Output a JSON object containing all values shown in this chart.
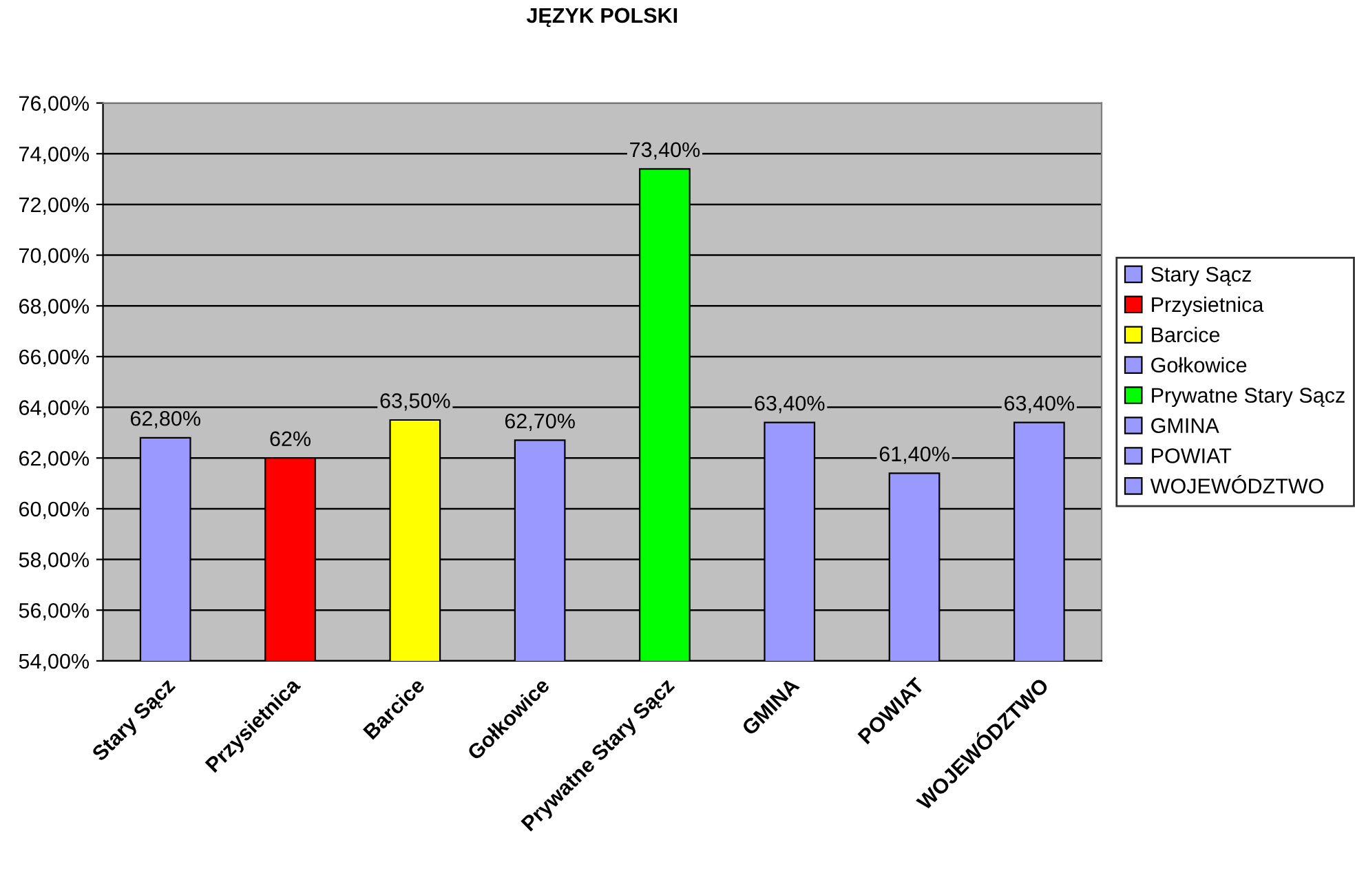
{
  "chart_data": {
    "type": "bar",
    "title": "JĘZYK POLSKI",
    "stacked": true,
    "categories": [
      "Stary Sącz",
      "Przysietnica",
      "Barcice",
      "Gołkowice",
      "Prywatne Stary Sącz",
      "GMINA",
      "POWIAT",
      "WOJEWÓDZTWO"
    ],
    "series": [
      {
        "name": "Stary Sącz",
        "color": "#9999ff",
        "values": [
          62.8,
          null,
          null,
          null,
          null,
          null,
          null,
          null
        ],
        "value_labels": [
          "62,80%",
          null,
          null,
          null,
          null,
          null,
          null,
          null
        ]
      },
      {
        "name": "Przysietnica",
        "color": "#ff0000",
        "values": [
          null,
          62,
          null,
          null,
          null,
          null,
          null,
          null
        ],
        "value_labels": [
          null,
          "62%",
          null,
          null,
          null,
          null,
          null,
          null
        ]
      },
      {
        "name": "Barcice",
        "color": "#ffff00",
        "values": [
          null,
          null,
          63.5,
          null,
          null,
          null,
          null,
          null
        ],
        "value_labels": [
          null,
          null,
          "63,50%",
          null,
          null,
          null,
          null,
          null
        ]
      },
      {
        "name": "Gołkowice",
        "color": "#9999ff",
        "values": [
          null,
          null,
          null,
          62.7,
          null,
          null,
          null,
          null
        ],
        "value_labels": [
          null,
          null,
          null,
          "62,70%",
          null,
          null,
          null,
          null
        ]
      },
      {
        "name": "Prywatne Stary Sącz",
        "color": "#00ff00",
        "values": [
          null,
          null,
          null,
          null,
          73.4,
          null,
          null,
          null
        ],
        "value_labels": [
          null,
          null,
          null,
          null,
          "73,40%",
          null,
          null,
          null
        ]
      },
      {
        "name": "GMINA",
        "color": "#9999ff",
        "values": [
          null,
          null,
          null,
          null,
          null,
          63.4,
          null,
          null
        ],
        "value_labels": [
          null,
          null,
          null,
          null,
          null,
          "63,40%",
          null,
          null
        ]
      },
      {
        "name": "POWIAT",
        "color": "#9999ff",
        "values": [
          null,
          null,
          null,
          null,
          null,
          null,
          61.4,
          null
        ],
        "value_labels": [
          null,
          null,
          null,
          null,
          null,
          null,
          "61,40%",
          null
        ]
      },
      {
        "name": "WOJEWÓDZTWO",
        "color": "#9999ff",
        "values": [
          null,
          null,
          null,
          null,
          null,
          null,
          null,
          63.4
        ],
        "value_labels": [
          null,
          null,
          null,
          null,
          null,
          null,
          null,
          "63,40%"
        ]
      }
    ],
    "ylim": [
      54,
      76
    ],
    "yticks": [
      {
        "value": 54,
        "label": "54,00%"
      },
      {
        "value": 56,
        "label": "56,00%"
      },
      {
        "value": 58,
        "label": "58,00%"
      },
      {
        "value": 60,
        "label": "60,00%"
      },
      {
        "value": 62,
        "label": "62,00%"
      },
      {
        "value": 64,
        "label": "64,00%"
      },
      {
        "value": 66,
        "label": "66,00%"
      },
      {
        "value": 68,
        "label": "68,00%"
      },
      {
        "value": 70,
        "label": "70,00%"
      },
      {
        "value": 72,
        "label": "72,00%"
      },
      {
        "value": 74,
        "label": "74,00%"
      },
      {
        "value": 76,
        "label": "76,00%"
      }
    ],
    "grid": "y",
    "legend": "right"
  }
}
